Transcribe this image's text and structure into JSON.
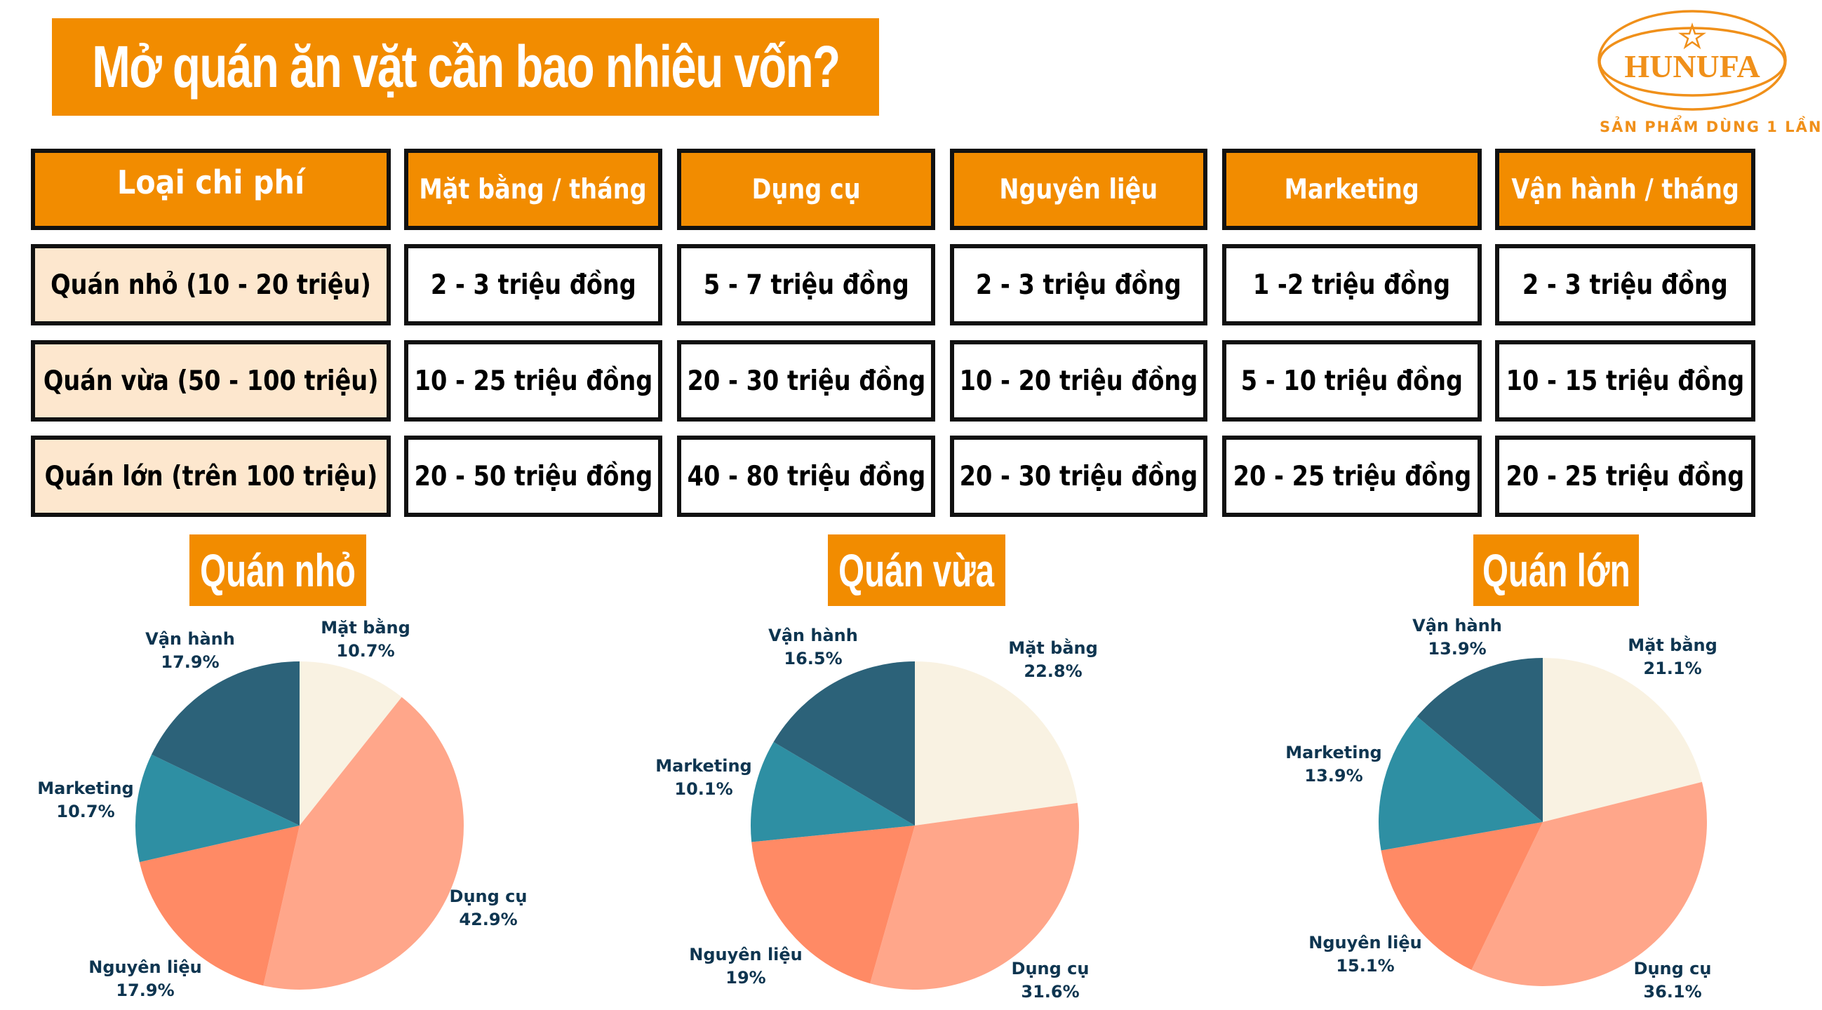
{
  "title": "Mở quán ăn vặt cần bao nhiêu vốn?",
  "logo": {
    "brand": "HUNUFA",
    "tagline": "SẢN PHẨM DÙNG 1 LẦN",
    "icon": "star-icon",
    "color": "#F0901A"
  },
  "colors": {
    "accent": "#F28C00",
    "row_label_bg": "#FDE7CE",
    "label_text": "#0E3550"
  },
  "table": {
    "headers": [
      "Loại chi phí",
      "Mặt bằng / tháng",
      "Dụng cụ",
      "Nguyên liệu",
      "Marketing",
      "Vận hành / tháng"
    ],
    "rows": [
      {
        "label": "Quán nhỏ (10 - 20 triệu)",
        "cells": [
          "2 - 3 triệu đồng",
          "5 - 7 triệu đồng",
          "2 - 3 triệu đồng",
          "1 -2 triệu đồng",
          "2 - 3 triệu đồng"
        ]
      },
      {
        "label": "Quán vừa (50 - 100 triệu)",
        "cells": [
          "10 - 25 triệu đồng",
          "20 - 30 triệu đồng",
          "10 - 20 triệu đồng",
          "5 - 10 triệu đồng",
          "10 - 15 triệu đồng"
        ]
      },
      {
        "label": "Quán lớn (trên 100 triệu)",
        "cells": [
          "20 - 50 triệu đồng",
          "40 - 80 triệu đồng",
          "20 - 30 triệu đồng",
          "20 - 25 triệu đồng",
          "20 - 25 triệu đồng"
        ]
      }
    ]
  },
  "chart_data": [
    {
      "type": "pie",
      "title": "Quán nhỏ",
      "categories": [
        "Mặt bằng",
        "Dụng cụ",
        "Nguyên liệu",
        "Marketing",
        "Vận hành"
      ],
      "values": [
        10.7,
        42.9,
        17.9,
        10.7,
        17.9
      ],
      "labels": [
        "10.7%",
        "42.9%",
        "17.9%",
        "10.7%",
        "17.9%"
      ],
      "colors": [
        "#F9F2E2",
        "#FFA68A",
        "#FF8A65",
        "#2E8FA3",
        "#2C6279"
      ],
      "start_angle": "12 o'clock, clockwise"
    },
    {
      "type": "pie",
      "title": "Quán vừa",
      "categories": [
        "Mặt bằng",
        "Dụng cụ",
        "Nguyên liệu",
        "Marketing",
        "Vận hành"
      ],
      "values": [
        22.8,
        31.6,
        19,
        10.1,
        16.5
      ],
      "labels": [
        "22.8%",
        "31.6%",
        "19%",
        "10.1%",
        "16.5%"
      ],
      "colors": [
        "#F9F2E2",
        "#FFA68A",
        "#FF8A65",
        "#2E8FA3",
        "#2C6279"
      ],
      "start_angle": "12 o'clock, clockwise"
    },
    {
      "type": "pie",
      "title": "Quán lớn",
      "categories": [
        "Mặt bằng",
        "Dụng cụ",
        "Nguyên liệu",
        "Marketing",
        "Vận hành"
      ],
      "values": [
        21.1,
        36.1,
        15.1,
        13.9,
        13.9
      ],
      "labels": [
        "21.1%",
        "36.1%",
        "15.1%",
        "13.9%",
        "13.9%"
      ],
      "colors": [
        "#F9F2E2",
        "#FFA68A",
        "#FF8A65",
        "#2E8FA3",
        "#2C6279"
      ],
      "start_angle": "12 o'clock, clockwise"
    }
  ]
}
